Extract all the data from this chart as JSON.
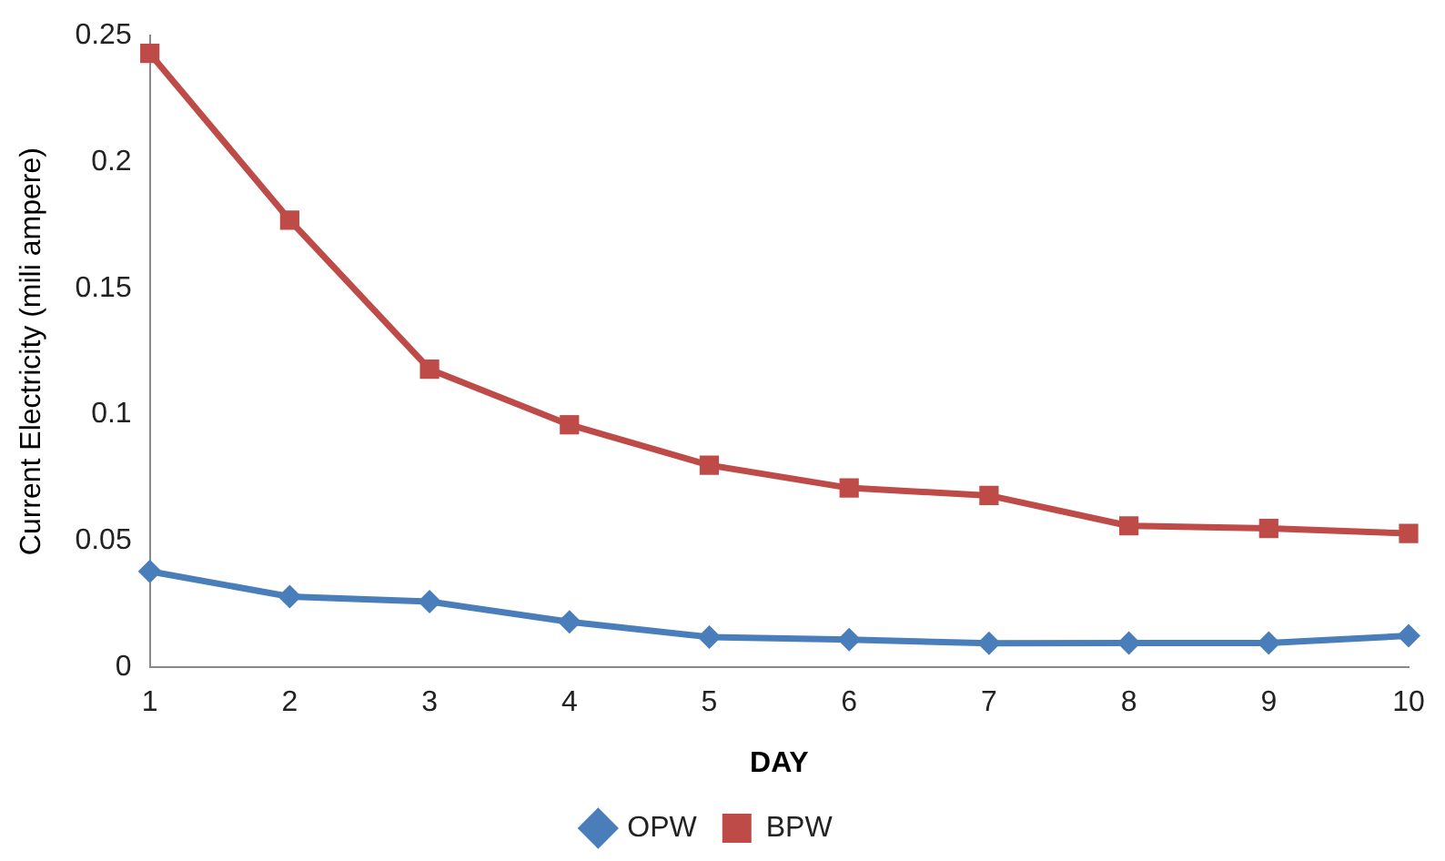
{
  "chart_data": {
    "type": "line",
    "xlabel": "DAY",
    "ylabel": "Current Electricity (mili ampere)",
    "categories": [
      "1",
      "2",
      "3",
      "4",
      "5",
      "6",
      "7",
      "8",
      "9",
      "10"
    ],
    "series": [
      {
        "name": "OPW",
        "color": "#4a7ebb",
        "marker": "diamond",
        "values": [
          0.038,
          0.028,
          0.026,
          0.018,
          0.012,
          0.011,
          0.0095,
          0.0096,
          0.0096,
          0.0125
        ]
      },
      {
        "name": "BPW",
        "color": "#be4b48",
        "marker": "square",
        "values": [
          0.243,
          0.177,
          0.118,
          0.096,
          0.08,
          0.071,
          0.068,
          0.056,
          0.055,
          0.053
        ]
      }
    ],
    "ylim": [
      0,
      0.25
    ],
    "yticks": [
      0,
      0.05,
      0.1,
      0.15,
      0.2,
      0.25
    ],
    "grid": false,
    "legend": "bottom",
    "line_style": "solid"
  }
}
